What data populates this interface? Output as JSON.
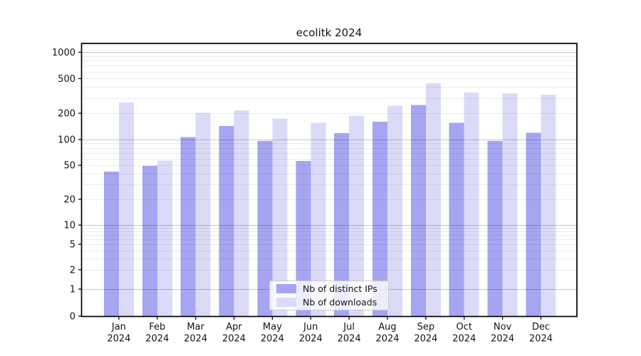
{
  "chart_data": {
    "type": "bar",
    "title": "ecolitk 2024",
    "categories": [
      "Jan",
      "Feb",
      "Mar",
      "Apr",
      "May",
      "Jun",
      "Jul",
      "Aug",
      "Sep",
      "Oct",
      "Nov",
      "Dec"
    ],
    "year_label": "2024",
    "yscale": "symlog",
    "yticks": [
      0,
      1,
      2,
      5,
      10,
      20,
      50,
      100,
      200,
      500,
      1000
    ],
    "ylim": [
      0,
      1260
    ],
    "grid": true,
    "legend_position": "lower center",
    "series": [
      {
        "name": "Nb of distinct IPs",
        "color": "#a5a5f1",
        "values": [
          42,
          49,
          107,
          143,
          96,
          56,
          118,
          160,
          248,
          155,
          96,
          120
        ]
      },
      {
        "name": "Nb of downloads",
        "color": "#dbdbf8",
        "values": [
          265,
          57,
          203,
          216,
          174,
          155,
          188,
          245,
          440,
          345,
          340,
          325
        ]
      }
    ]
  }
}
